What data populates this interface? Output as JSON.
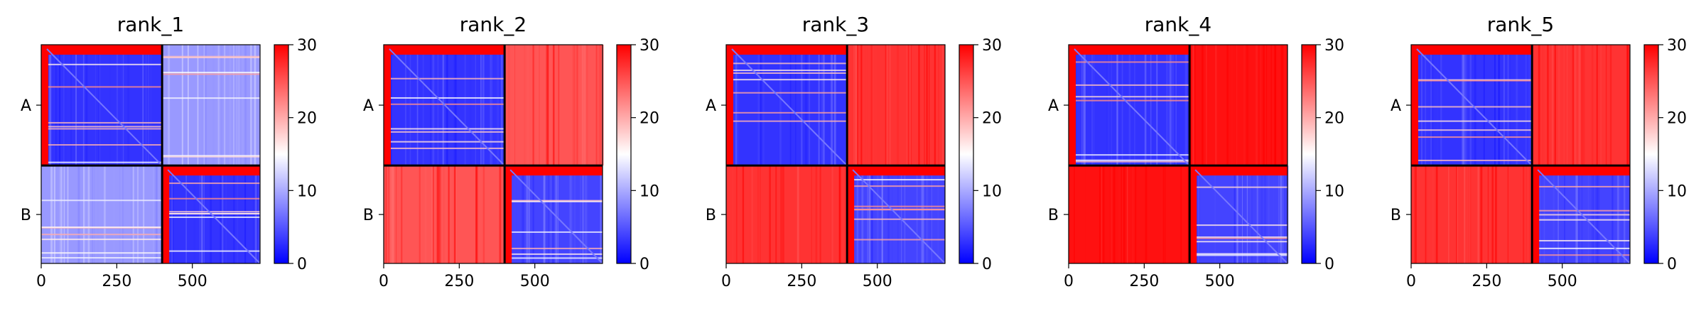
{
  "chart_data": [
    {
      "type": "heatmap",
      "title": "rank_1",
      "x_ticks": [
        0,
        250,
        500
      ],
      "y_ticks": [
        "A",
        "B"
      ],
      "x_range": [
        0,
        724
      ],
      "split_at": 400,
      "colorbar": {
        "min": 0,
        "max": 30,
        "ticks": [
          0,
          10,
          20,
          30
        ],
        "colormap": "bwr"
      },
      "block_values": {
        "AA": 3,
        "AB": 9,
        "BA": 9,
        "BB": 3
      }
    },
    {
      "type": "heatmap",
      "title": "rank_2",
      "x_ticks": [
        0,
        250,
        500
      ],
      "y_ticks": [
        "A",
        "B"
      ],
      "x_range": [
        0,
        724
      ],
      "split_at": 400,
      "colorbar": {
        "min": 0,
        "max": 30,
        "ticks": [
          0,
          10,
          20,
          30
        ],
        "colormap": "bwr"
      },
      "block_values": {
        "AA": 3,
        "AB": 25,
        "BA": 25,
        "BB": 4
      }
    },
    {
      "type": "heatmap",
      "title": "rank_3",
      "x_ticks": [
        0,
        250,
        500
      ],
      "y_ticks": [
        "A",
        "B"
      ],
      "x_range": [
        0,
        724
      ],
      "split_at": 400,
      "colorbar": {
        "min": 0,
        "max": 30,
        "ticks": [
          0,
          10,
          20,
          30
        ],
        "colormap": "bwr"
      },
      "block_values": {
        "AA": 3,
        "AB": 27,
        "BA": 27,
        "BB": 4
      }
    },
    {
      "type": "heatmap",
      "title": "rank_4",
      "x_ticks": [
        0,
        250,
        500
      ],
      "y_ticks": [
        "A",
        "B"
      ],
      "x_range": [
        0,
        724
      ],
      "split_at": 400,
      "colorbar": {
        "min": 0,
        "max": 30,
        "ticks": [
          0,
          10,
          20,
          30
        ],
        "colormap": "bwr"
      },
      "block_values": {
        "AA": 3,
        "AB": 29,
        "BA": 29,
        "BB": 4
      }
    },
    {
      "type": "heatmap",
      "title": "rank_5",
      "x_ticks": [
        0,
        250,
        500
      ],
      "y_ticks": [
        "A",
        "B"
      ],
      "x_range": [
        0,
        724
      ],
      "split_at": 400,
      "colorbar": {
        "min": 0,
        "max": 30,
        "ticks": [
          0,
          10,
          20,
          30
        ],
        "colormap": "bwr"
      },
      "block_values": {
        "AA": 3,
        "AB": 27,
        "BA": 27,
        "BB": 4
      }
    }
  ],
  "colors": {
    "low": "#0000ff",
    "mid": "#ffffff",
    "high": "#ff0000",
    "axis": "#000000"
  }
}
